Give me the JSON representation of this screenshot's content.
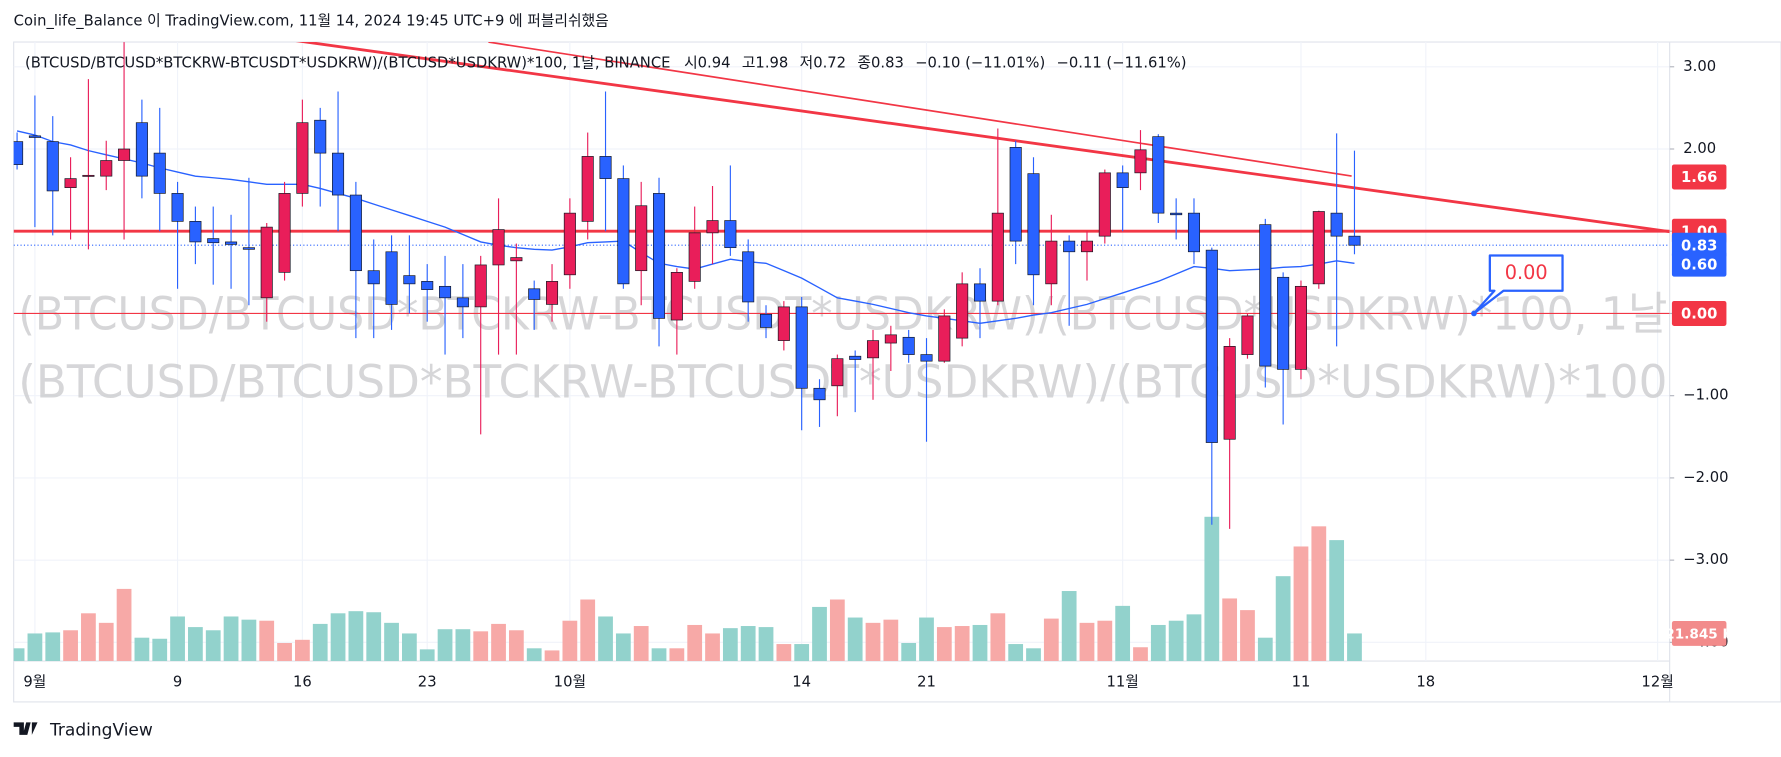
{
  "header": "Coin_life_Balance 이 TradingView.com, 11월 14, 2024 19:45 UTC+9 에 퍼블리쉬했음",
  "footer": "TradingView",
  "chart_data": {
    "type": "candlestick",
    "legend": {
      "symbol": "(BTCUSD/BTCUSD*BTCKRW-BTCUSDT*USDKRW)/(BTCUSD*USDKRW)*100, 1날, BINANCE",
      "open_label": "시",
      "high_label": "고",
      "low_label": "저",
      "close_label": "종",
      "change": "−0.10 (−11.01%)",
      "change2": "−0.11 (−11.61%)"
    },
    "watermark": [
      "(BTCUSD/BTCUSD*BTCKRW-BTCUSDT*USDKRW)/(BTCUSD*USDKRW)*100, 1날",
      "(BTCUSD/BTCUSD*BTCKRW-BTCUSDT*USDKRW)/(BTCUSD*USDKRW)*100"
    ],
    "x": [
      0,
      1,
      2,
      3,
      4,
      5,
      6,
      7,
      8,
      9,
      10,
      11,
      12,
      13,
      14,
      15,
      16,
      17,
      18,
      19,
      20,
      21,
      22,
      23,
      24,
      25,
      26,
      27,
      28,
      29,
      30,
      31,
      32,
      33,
      34,
      35,
      36,
      37,
      38,
      39,
      40,
      41,
      42,
      43,
      44,
      45,
      46,
      47,
      48,
      49,
      50,
      51,
      52,
      53,
      54,
      55,
      56,
      57,
      58,
      59,
      60,
      61,
      62,
      63,
      64,
      65,
      66,
      67,
      68,
      69,
      70,
      71,
      72,
      73,
      74,
      75
    ],
    "open": [
      2.09,
      2.16,
      2.09,
      1.53,
      1.67,
      1.67,
      1.86,
      2.32,
      1.95,
      1.46,
      1.12,
      0.91,
      0.87,
      0.8,
      0.19,
      0.5,
      1.46,
      2.35,
      1.95,
      1.44,
      0.52,
      0.75,
      0.46,
      0.39,
      0.33,
      0.19,
      0.08,
      0.59,
      0.64,
      0.3,
      0.11,
      0.47,
      1.12,
      1.91,
      1.64,
      0.52,
      1.46,
      -0.08,
      0.39,
      0.98,
      1.13,
      0.75,
      -0.01,
      -0.33,
      0.08,
      -0.91,
      -0.88,
      -0.52,
      -0.54,
      -0.36,
      -0.29,
      -0.5,
      -0.58,
      -0.3,
      0.36,
      0.15,
      2.02,
      1.7,
      0.36,
      0.88,
      0.75,
      0.94,
      1.71,
      1.71,
      2.15,
      1.22,
      1.22,
      0.77,
      -1.53,
      -0.5,
      1.08,
      0.44,
      -0.68,
      0.36,
      1.22,
      0.94
    ],
    "high": [
      2.2,
      2.65,
      2.4,
      1.9,
      2.85,
      2.1,
      3.3,
      2.6,
      2.5,
      1.6,
      1.3,
      1.3,
      1.2,
      1.65,
      1.1,
      1.6,
      2.6,
      2.5,
      2.7,
      1.6,
      0.9,
      0.95,
      0.95,
      0.6,
      0.7,
      0.6,
      0.7,
      1.4,
      0.85,
      0.4,
      0.6,
      1.4,
      2.2,
      2.7,
      1.8,
      1.6,
      1.65,
      0.55,
      1.3,
      1.55,
      1.8,
      0.9,
      0.1,
      0.15,
      0.2,
      -0.8,
      -0.5,
      -0.45,
      -0.2,
      -0.15,
      -0.2,
      -0.3,
      0.05,
      0.5,
      0.55,
      2.25,
      2.1,
      1.9,
      1.2,
      0.95,
      1.0,
      1.75,
      1.8,
      2.23,
      2.18,
      1.4,
      1.4,
      0.8,
      -0.3,
      0.0,
      1.15,
      0.5,
      0.4,
      1.25,
      2.19,
      1.98
    ],
    "low": [
      1.75,
      1.05,
      0.95,
      0.9,
      0.78,
      1.5,
      0.9,
      1.4,
      1.0,
      0.3,
      0.6,
      0.35,
      0.3,
      0.1,
      -0.1,
      0.4,
      1.3,
      1.3,
      1.0,
      -0.3,
      -0.3,
      -0.2,
      0.0,
      -0.1,
      -0.5,
      -0.3,
      -1.47,
      -0.5,
      -0.5,
      -0.2,
      -0.1,
      0.3,
      0.9,
      1.0,
      0.3,
      0.1,
      -0.4,
      -0.5,
      0.3,
      0.6,
      0.7,
      -0.1,
      -0.3,
      -0.45,
      -1.42,
      -1.38,
      -1.25,
      -1.2,
      -1.05,
      -0.7,
      -0.6,
      -1.56,
      -0.6,
      -0.4,
      -0.3,
      0.1,
      0.6,
      0.1,
      0.1,
      -0.15,
      0.4,
      0.85,
      1.0,
      1.5,
      1.1,
      0.9,
      0.6,
      -2.57,
      -2.62,
      -0.55,
      -0.9,
      -1.35,
      -0.8,
      0.3,
      -0.4,
      0.72
    ],
    "close": [
      1.81,
      2.14,
      1.49,
      1.64,
      1.68,
      1.86,
      2.0,
      1.67,
      1.46,
      1.12,
      0.87,
      0.86,
      0.84,
      0.78,
      1.05,
      1.46,
      2.32,
      1.95,
      1.44,
      0.52,
      0.36,
      0.11,
      0.36,
      0.29,
      0.19,
      0.08,
      0.59,
      1.02,
      0.68,
      0.17,
      0.39,
      1.22,
      1.91,
      1.64,
      0.36,
      1.31,
      -0.06,
      0.5,
      0.98,
      1.13,
      0.8,
      0.14,
      -0.17,
      0.08,
      -0.91,
      -1.05,
      -0.55,
      -0.56,
      -0.33,
      -0.26,
      -0.5,
      -0.58,
      -0.03,
      0.36,
      0.15,
      1.22,
      0.88,
      0.47,
      0.88,
      0.75,
      0.88,
      1.71,
      1.53,
      1.99,
      1.22,
      1.2,
      0.75,
      -1.57,
      -0.4,
      -0.03,
      -0.64,
      -0.68,
      0.33,
      1.24,
      0.94,
      0.83
    ],
    "volume": [
      10080,
      21840,
      22680,
      24360,
      37800,
      30240,
      57120,
      18480,
      17640,
      35280,
      26880,
      24360,
      35280,
      32760,
      31920,
      14280,
      16800,
      29400,
      37800,
      39480,
      38640,
      30240,
      21840,
      9240,
      25200,
      25200,
      23520,
      29400,
      24360,
      10080,
      8400,
      31920,
      48720,
      35280,
      21840,
      27720,
      10080,
      10080,
      28560,
      21840,
      26040,
      27720,
      26880,
      13440,
      13440,
      42840,
      48720,
      34440,
      30240,
      32760,
      14280,
      34440,
      26880,
      27720,
      28560,
      37800,
      13440,
      10080,
      33600,
      55440,
      30240,
      31920,
      43680,
      10920,
      28560,
      31920,
      36960,
      114240,
      49560,
      40320,
      18480,
      67200,
      90720,
      106680,
      95760,
      21845
    ],
    "volume_label": "21.845 K",
    "ma": [
      2.22,
      2.17,
      2.09,
      2.05,
      1.98,
      1.93,
      1.88,
      1.83,
      1.77,
      1.72,
      1.67,
      1.65,
      1.63,
      1.6,
      1.57,
      1.57,
      1.57,
      1.52,
      1.46,
      1.4,
      1.33,
      1.26,
      1.19,
      1.12,
      1.05,
      0.96,
      0.87,
      0.83,
      0.8,
      0.78,
      0.77,
      0.81,
      0.86,
      0.87,
      0.88,
      0.74,
      0.61,
      0.57,
      0.54,
      0.6,
      0.66,
      0.63,
      0.61,
      0.52,
      0.43,
      0.31,
      0.19,
      0.15,
      0.11,
      0.06,
      0.01,
      -0.03,
      -0.06,
      -0.09,
      -0.12,
      -0.09,
      -0.06,
      -0.02,
      0.01,
      0.06,
      0.11,
      0.18,
      0.25,
      0.32,
      0.39,
      0.48,
      0.57,
      0.55,
      0.52,
      0.53,
      0.54,
      0.56,
      0.57,
      0.6,
      0.64,
      0.61
    ],
    "colors": {
      "up": "#e91e5a",
      "down": "#2962ff",
      "volume_up": "#f7a9a7",
      "volume_down": "#92d2cc",
      "ma": "#2962ff",
      "level": "#f23645"
    },
    "levels": [
      {
        "value": 1,
        "width": 2.5
      },
      {
        "value": 0,
        "width": 1
      }
    ],
    "price_labels": [
      {
        "value": 1.66,
        "label": "1.66",
        "color": "#f23645"
      },
      {
        "value": 1,
        "label": "1.00",
        "color": "#f23645"
      },
      {
        "value": 0.83,
        "label": "0.83",
        "color": "#2962ff"
      },
      {
        "value": 0.6,
        "label": "0.60",
        "color": "#2962ff"
      },
      {
        "value": 0,
        "label": "0.00",
        "color": "#f23645"
      }
    ],
    "annotation": {
      "x": 81.7,
      "value": 0,
      "label": "0.00"
    },
    "xlim": [
      -0.191,
      92.675
    ],
    "ylim": [
      -4.227,
      3.301
    ],
    "xticks": [
      {
        "value": 1,
        "label": "9월"
      },
      {
        "value": 9,
        "label": "9"
      },
      {
        "value": 16,
        "label": "16"
      },
      {
        "value": 23,
        "label": "23"
      },
      {
        "value": 31,
        "label": "10월"
      },
      {
        "value": 44,
        "label": "14"
      },
      {
        "value": 51,
        "label": "21"
      },
      {
        "value": 62,
        "label": "11월"
      },
      {
        "value": 72,
        "label": "11"
      },
      {
        "value": 79,
        "label": "18"
      },
      {
        "value": 92,
        "label": "12월"
      }
    ],
    "yticks": [
      {
        "value": 3,
        "label": "3.00"
      },
      {
        "value": 2,
        "label": "2.00"
      },
      {
        "value": 1,
        "label": "1.00"
      },
      {
        "value": 0,
        "label": "0.00"
      },
      {
        "value": -1,
        "label": "−1.00"
      },
      {
        "value": -2,
        "label": "−2.00"
      },
      {
        "value": -3,
        "label": "−3.00"
      },
      {
        "value": -4,
        "label": "−4.00"
      }
    ],
    "grid": true
  }
}
